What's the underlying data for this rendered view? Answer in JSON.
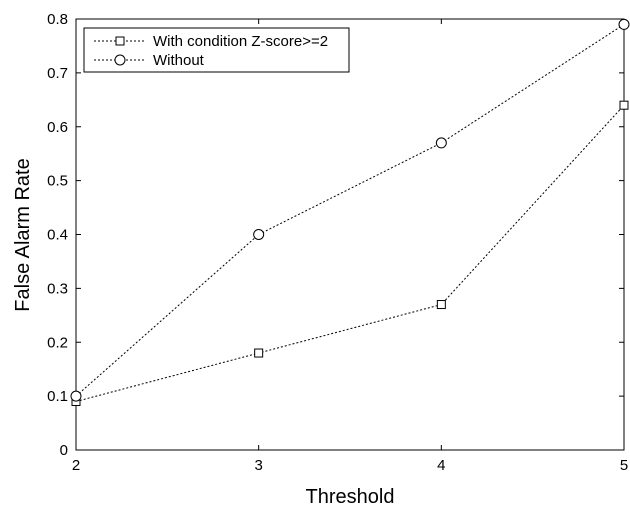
{
  "chart_data": {
    "type": "line",
    "xlabel": "Threshold",
    "ylabel": "False Alarm Rate",
    "xlim": [
      2,
      5
    ],
    "ylim": [
      0,
      0.8
    ],
    "x_ticks": [
      2,
      3,
      4,
      5
    ],
    "y_ticks": [
      0,
      0.1,
      0.2,
      0.3,
      0.4,
      0.5,
      0.6,
      0.7,
      0.8
    ],
    "grid": false,
    "legend_position": "top-left",
    "x": [
      2,
      3,
      4,
      5
    ],
    "series": [
      {
        "name": "With condition Z-score>=2",
        "marker": "square",
        "line_style": "dotted",
        "color": "#000000",
        "values": [
          0.09,
          0.18,
          0.27,
          0.64
        ]
      },
      {
        "name": "Without",
        "marker": "circle",
        "line_style": "dotted",
        "color": "#000000",
        "values": [
          0.1,
          0.4,
          0.57,
          0.79
        ]
      }
    ]
  }
}
